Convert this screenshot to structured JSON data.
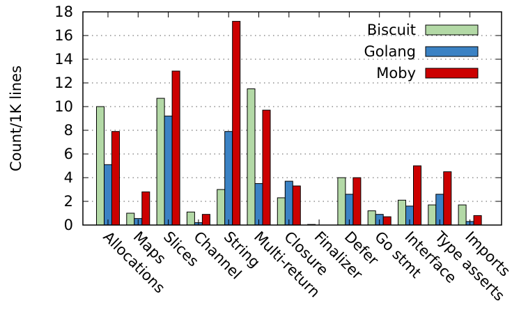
{
  "chart_data": {
    "type": "bar",
    "title": "",
    "xlabel": "",
    "ylabel": "Count/1K lines",
    "ylim": [
      0,
      18
    ],
    "yticks": [
      0,
      2,
      4,
      6,
      8,
      10,
      12,
      14,
      16,
      18
    ],
    "grid": "horizontal dotted",
    "legend_position": "top-right",
    "categories": [
      "Allocations",
      "Maps",
      "Slices",
      "Channel",
      "String",
      "Multi-return",
      "Closure",
      "Finalizer",
      "Defer",
      "Go stmt",
      "Interface",
      "Type asserts",
      "Imports"
    ],
    "series": [
      {
        "name": "Biscuit",
        "color": "#b3d9a6",
        "values": [
          10.0,
          1.0,
          10.7,
          1.1,
          3.0,
          11.5,
          2.3,
          0.05,
          4.0,
          1.2,
          2.1,
          1.7,
          1.7
        ]
      },
      {
        "name": "Golang",
        "color": "#3b82c4",
        "values": [
          5.1,
          0.55,
          9.2,
          0.2,
          7.9,
          3.5,
          3.7,
          0.0,
          2.6,
          0.9,
          1.6,
          2.6,
          0.3
        ]
      },
      {
        "name": "Moby",
        "color": "#cc0000",
        "values": [
          7.9,
          2.8,
          13.0,
          0.9,
          17.2,
          9.7,
          3.3,
          0.0,
          4.0,
          0.7,
          5.0,
          4.5,
          0.8
        ]
      }
    ]
  }
}
